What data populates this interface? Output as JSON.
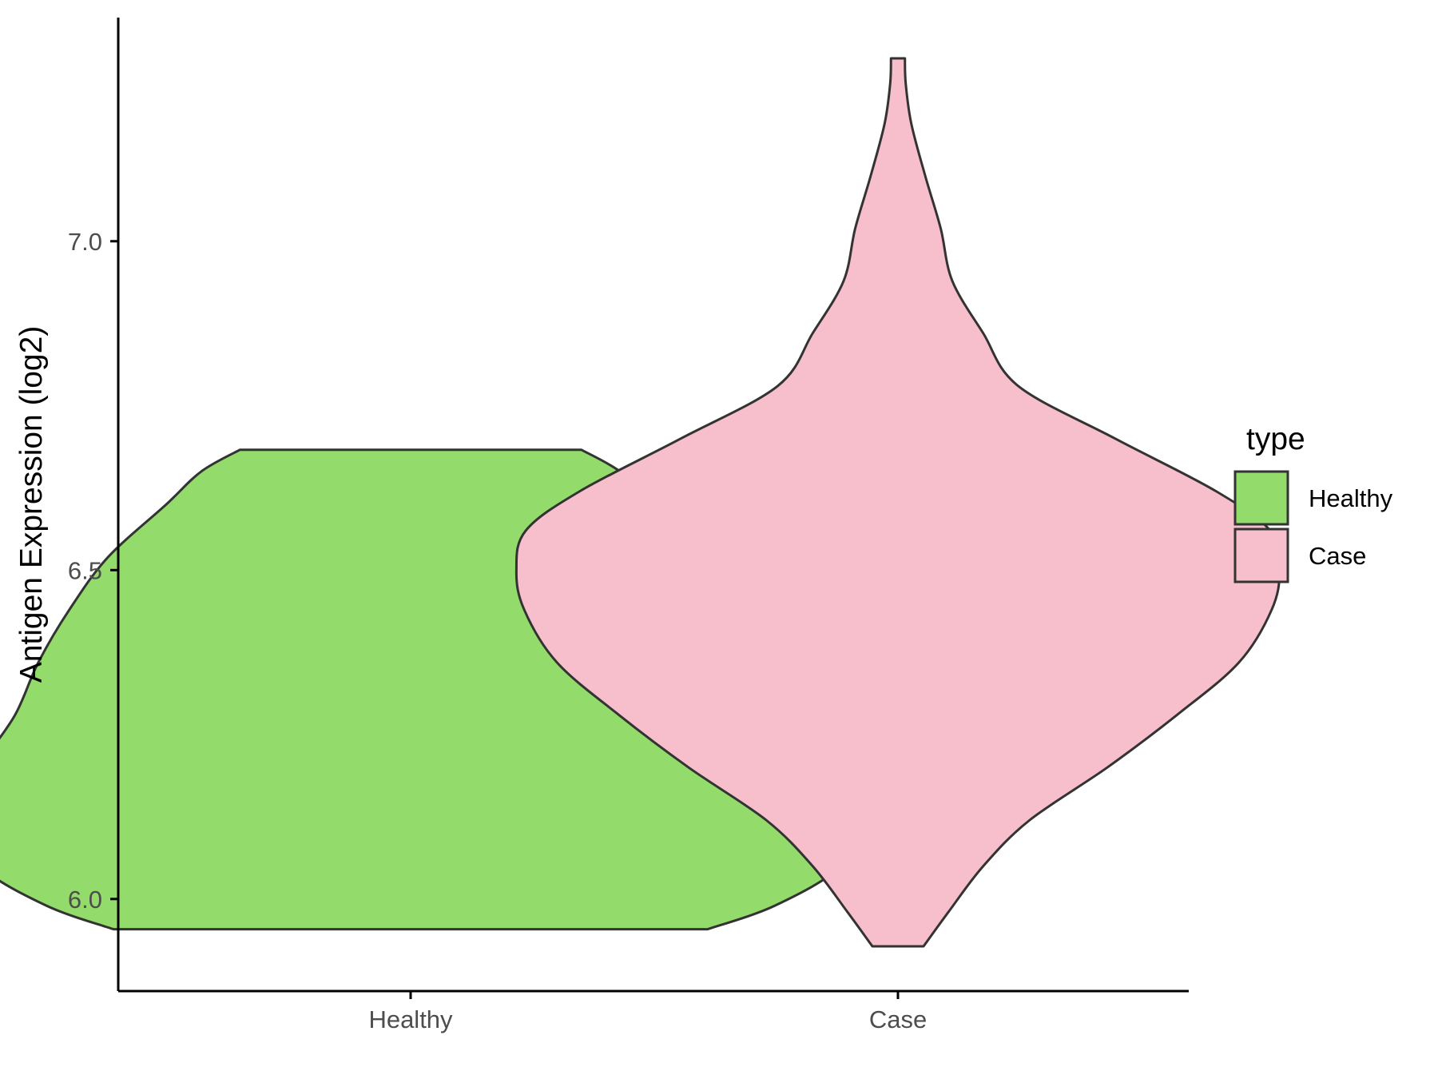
{
  "chart_data": {
    "type": "violin",
    "xlabel": "",
    "ylabel": "Antigen Expression (log2)",
    "categories": [
      "Healthy",
      "Case"
    ],
    "ylim": [
      5.86,
      7.34
    ],
    "yticks": [
      6.0,
      6.5,
      7.0
    ],
    "ytick_labels": [
      "6.0",
      "6.5",
      "7.0"
    ],
    "grid": false,
    "legend": {
      "title": "type",
      "position": "right",
      "entries": [
        "Healthy",
        "Case"
      ]
    },
    "series": [
      {
        "name": "Healthy",
        "color": "#93DB6A",
        "min": 5.954,
        "max": 6.683,
        "density_profile": [
          [
            5.954,
            0.383
          ],
          [
            5.99,
            0.47
          ],
          [
            6.05,
            0.555
          ],
          [
            6.12,
            0.58
          ],
          [
            6.2,
            0.555
          ],
          [
            6.28,
            0.51
          ],
          [
            6.36,
            0.48
          ],
          [
            6.44,
            0.44
          ],
          [
            6.52,
            0.39
          ],
          [
            6.6,
            0.315
          ],
          [
            6.65,
            0.27
          ],
          [
            6.683,
            0.22
          ]
        ]
      },
      {
        "name": "Case",
        "color": "#F7BFCB",
        "min": 5.928,
        "max": 7.278,
        "density_profile": [
          [
            5.928,
            0.033
          ],
          [
            5.98,
            0.065
          ],
          [
            6.05,
            0.11
          ],
          [
            6.12,
            0.17
          ],
          [
            6.2,
            0.27
          ],
          [
            6.28,
            0.36
          ],
          [
            6.36,
            0.44
          ],
          [
            6.44,
            0.482
          ],
          [
            6.5,
            0.492
          ],
          [
            6.56,
            0.48
          ],
          [
            6.62,
            0.41
          ],
          [
            6.7,
            0.28
          ],
          [
            6.78,
            0.155
          ],
          [
            6.86,
            0.11
          ],
          [
            6.94,
            0.07
          ],
          [
            7.02,
            0.055
          ],
          [
            7.1,
            0.035
          ],
          [
            7.18,
            0.017
          ],
          [
            7.24,
            0.01
          ],
          [
            7.278,
            0.009
          ]
        ]
      }
    ]
  },
  "colors": {
    "outline": "#333333",
    "axis": "#000000",
    "tick_text": "#4d4d4d"
  }
}
